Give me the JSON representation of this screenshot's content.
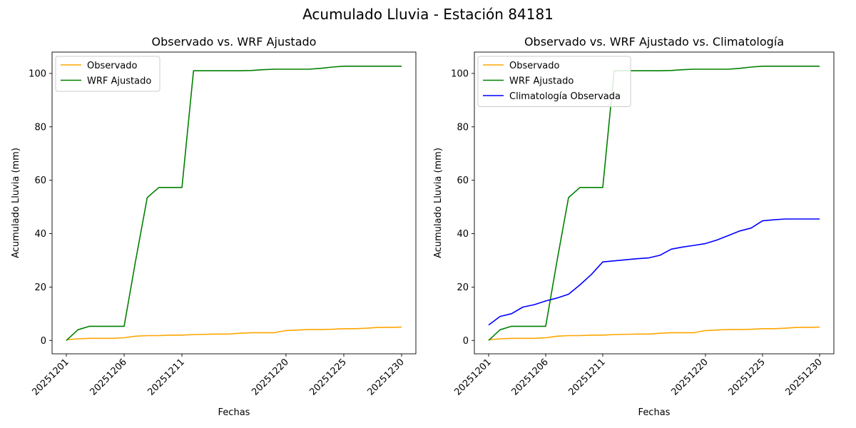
{
  "suptitle": "Acumulado Lluvia - Estación 84181",
  "colors": {
    "Observado": "#FFA500",
    "WRF Ajustado": "#008000",
    "Climatología Observada": "#0000FF"
  },
  "chart_data": [
    {
      "type": "line",
      "title": "Observado vs. WRF Ajustado",
      "xlabel": "Fechas",
      "ylabel": "Acumulado Lluvia (mm)",
      "x_ticks": [
        "20251201",
        "20251206",
        "20251211",
        "20251220",
        "20251225",
        "20251230"
      ],
      "y_ticks": [
        0,
        20,
        40,
        60,
        80,
        100
      ],
      "ylim": [
        -5,
        108
      ],
      "legend_location": "upper left",
      "x": [
        "20251201",
        "20251202",
        "20251203",
        "20251204",
        "20251205",
        "20251206",
        "20251207",
        "20251208",
        "20251209",
        "20251210",
        "20251211",
        "20251212",
        "20251214",
        "20251215",
        "20251216",
        "20251217",
        "20251218",
        "20251219",
        "20251220",
        "20251221",
        "20251222",
        "20251223",
        "20251224",
        "20251225",
        "20251226",
        "20251227",
        "20251228",
        "20251229",
        "20251230"
      ],
      "series": [
        {
          "name": "Observado",
          "color": "#FFA500",
          "values": [
            0.3,
            0.6,
            0.8,
            0.8,
            0.8,
            1.0,
            1.6,
            1.8,
            1.8,
            2.0,
            2.0,
            2.2,
            2.4,
            2.4,
            2.7,
            2.9,
            2.9,
            2.9,
            3.7,
            3.9,
            4.1,
            4.1,
            4.2,
            4.4,
            4.4,
            4.6,
            4.9,
            4.9,
            5.0
          ]
        },
        {
          "name": "WRF Ajustado",
          "color": "#008000",
          "values": [
            0.0,
            4.0,
            5.3,
            5.3,
            5.3,
            5.3,
            30.0,
            53.5,
            57.3,
            57.3,
            57.3,
            101.0,
            101.0,
            101.0,
            101.0,
            101.1,
            101.4,
            101.6,
            101.6,
            101.6,
            101.6,
            101.9,
            102.4,
            102.7,
            102.7,
            102.7,
            102.7,
            102.7,
            102.7
          ]
        }
      ]
    },
    {
      "type": "line",
      "title": "Observado vs. WRF Ajustado vs. Climatología",
      "xlabel": "Fechas",
      "ylabel": "Acumulado Lluvia (mm)",
      "x_ticks": [
        "20251201",
        "20251206",
        "20251211",
        "20251220",
        "20251225",
        "20251230"
      ],
      "y_ticks": [
        0,
        20,
        40,
        60,
        80,
        100
      ],
      "ylim": [
        -5,
        108
      ],
      "legend_location": "upper left",
      "x": [
        "20251201",
        "20251202",
        "20251203",
        "20251204",
        "20251205",
        "20251206",
        "20251207",
        "20251208",
        "20251209",
        "20251210",
        "20251211",
        "20251212",
        "20251214",
        "20251215",
        "20251216",
        "20251217",
        "20251218",
        "20251219",
        "20251220",
        "20251221",
        "20251222",
        "20251223",
        "20251224",
        "20251225",
        "20251226",
        "20251227",
        "20251228",
        "20251229",
        "20251230"
      ],
      "series": [
        {
          "name": "Observado",
          "color": "#FFA500",
          "values": [
            0.3,
            0.6,
            0.8,
            0.8,
            0.8,
            1.0,
            1.6,
            1.8,
            1.8,
            2.0,
            2.0,
            2.2,
            2.4,
            2.4,
            2.7,
            2.9,
            2.9,
            2.9,
            3.7,
            3.9,
            4.1,
            4.1,
            4.2,
            4.4,
            4.4,
            4.6,
            4.9,
            4.9,
            5.0
          ]
        },
        {
          "name": "WRF Ajustado",
          "color": "#008000",
          "values": [
            0.0,
            4.0,
            5.3,
            5.3,
            5.3,
            5.3,
            30.0,
            53.5,
            57.3,
            57.3,
            57.3,
            101.0,
            101.0,
            101.0,
            101.0,
            101.1,
            101.4,
            101.6,
            101.6,
            101.6,
            101.6,
            101.9,
            102.4,
            102.7,
            102.7,
            102.7,
            102.7,
            102.7,
            102.7
          ]
        },
        {
          "name": "Climatología Observada",
          "color": "#0000FF",
          "values": [
            5.8,
            9.0,
            10.0,
            12.5,
            13.4,
            14.8,
            15.9,
            17.3,
            20.8,
            24.7,
            29.4,
            29.8,
            30.6,
            30.9,
            31.9,
            34.2,
            35.0,
            35.6,
            36.3,
            37.6,
            39.3,
            41.0,
            42.1,
            44.8,
            45.2,
            45.5,
            45.5,
            45.5,
            45.5
          ]
        }
      ]
    }
  ]
}
